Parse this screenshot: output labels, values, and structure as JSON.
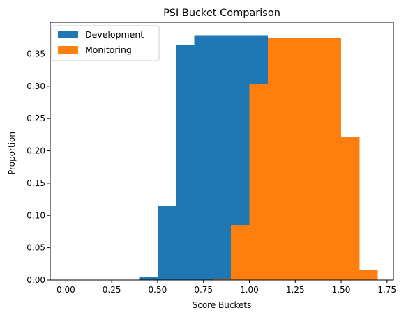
{
  "chart_data": {
    "type": "bar",
    "title": "PSI Bucket Comparison",
    "xlabel": "Score Buckets",
    "ylabel": "Proportion",
    "xlim": [
      -0.085,
      1.785
    ],
    "ylim": [
      0,
      0.399
    ],
    "xticks": [
      "0.00",
      "0.25",
      "0.50",
      "0.75",
      "1.00",
      "1.25",
      "1.50",
      "1.75"
    ],
    "yticks": [
      "0.00",
      "0.05",
      "0.10",
      "0.15",
      "0.20",
      "0.25",
      "0.30",
      "0.35"
    ],
    "legend_position": "upper-left",
    "grid": false,
    "bin_width": 0.1,
    "series": [
      {
        "name": "Development",
        "color": "#1f77b4",
        "bin_starts": [
          0.0,
          0.1,
          0.2,
          0.3,
          0.4,
          0.5,
          0.6,
          0.7,
          0.8,
          0.9,
          1.0
        ],
        "values": [
          0.0,
          0.0,
          0.0,
          0.0,
          0.005,
          0.115,
          0.364,
          0.379,
          0.379,
          0.379,
          0.379
        ]
      },
      {
        "name": "Monitoring",
        "color": "#ff7f0e",
        "bin_starts": [
          0.8,
          0.9,
          1.0,
          1.1,
          1.2,
          1.3,
          1.4,
          1.5,
          1.6
        ],
        "values": [
          0.002,
          0.085,
          0.303,
          0.374,
          0.374,
          0.374,
          0.374,
          0.221,
          0.015
        ]
      }
    ]
  }
}
